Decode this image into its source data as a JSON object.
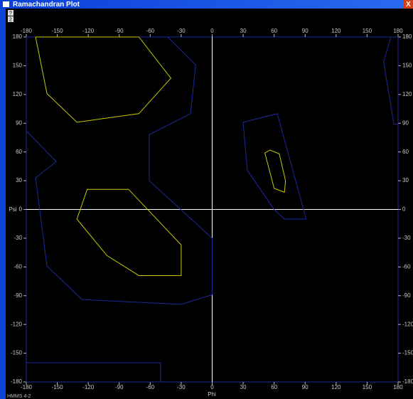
{
  "window": {
    "title": "Ramachandran Plot",
    "close": "X",
    "icons": [
      "?",
      "2"
    ],
    "footer": "HMMS 4-2"
  },
  "chart_data": {
    "type": "contour",
    "xlabel": "Phi",
    "ylabel": "Psi",
    "xlim": [
      -180,
      180
    ],
    "ylim": [
      -180,
      180
    ],
    "xticks": [
      -180,
      -150,
      -120,
      -90,
      -60,
      -30,
      0,
      30,
      60,
      90,
      120,
      150,
      180
    ],
    "yticks": [
      -180,
      -150,
      -120,
      -90,
      -60,
      -30,
      0,
      30,
      60,
      90,
      120,
      150,
      180
    ],
    "contours": [
      {
        "color": "#1c2a9c",
        "phi": [
          -180,
          -170,
          -43,
          -16,
          -21,
          -61,
          -61,
          0,
          0,
          -30,
          -126,
          -160,
          -171,
          -151,
          -180
        ],
        "psi": [
          180,
          180,
          180,
          151,
          100,
          78,
          30,
          -30,
          -89,
          -99,
          -94,
          -59,
          33,
          50,
          82
        ]
      },
      {
        "color": "#c8c800",
        "phi": [
          -171,
          -160,
          -131,
          -71,
          -40,
          -71
        ],
        "psi": [
          180,
          121,
          91,
          100,
          137,
          180
        ]
      },
      {
        "color": "#c8c800",
        "phi": [
          -121,
          -81,
          -30,
          -30,
          -71,
          -102,
          -131
        ],
        "psi": [
          21,
          21,
          -37,
          -69,
          -69,
          -48,
          -10
        ]
      },
      {
        "color": "#1c2a9c",
        "phi": [
          30,
          63,
          91,
          70,
          60,
          34
        ],
        "psi": [
          91,
          100,
          -10,
          -10,
          0,
          41
        ]
      },
      {
        "color": "#c8c800",
        "phi": [
          51,
          56,
          65,
          71,
          70,
          60
        ],
        "psi": [
          59,
          62,
          58,
          30,
          18,
          22
        ]
      },
      {
        "color": "#1c2a9c",
        "phi": [
          173,
          166,
          176,
          180,
          180
        ],
        "psi": [
          180,
          154,
          89,
          89,
          180
        ]
      },
      {
        "color": "#1c2a9c",
        "phi": [
          -180,
          -180,
          -50,
          -50
        ],
        "psi": [
          -180,
          -160,
          -160,
          -180
        ]
      }
    ]
  }
}
